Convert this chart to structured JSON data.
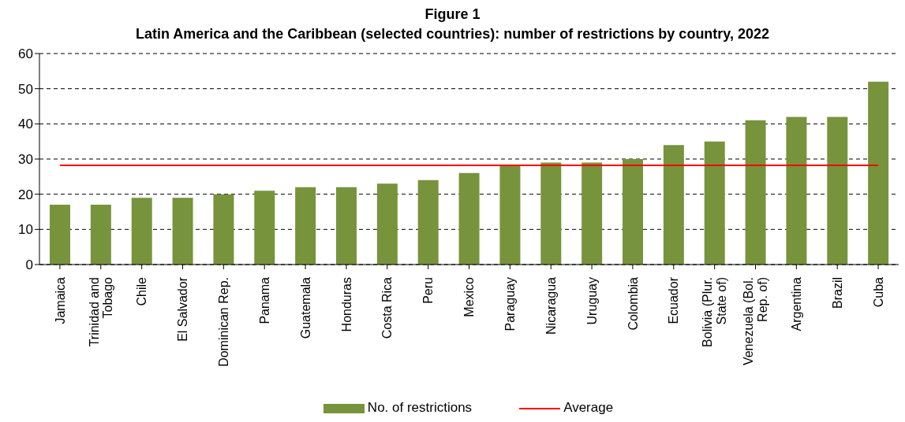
{
  "chart_data": {
    "type": "bar",
    "title": "Figure 1",
    "subtitle": "Latin America and the Caribbean (selected countries): number of restrictions by country, 2022",
    "categories": [
      "Jamaica",
      "Trinidad and Tobago",
      "Chile",
      "El Salvador",
      "Dominican Rep.",
      "Panama",
      "Guatemala",
      "Honduras",
      "Costa Rica",
      "Peru",
      "Mexico",
      "Paraguay",
      "Nicaragua",
      "Uruguay",
      "Colombia",
      "Ecuador",
      "Bolivia (Plur. State of)",
      "Venezuela (Bol. Rep. of)",
      "Argentina",
      "Brazil",
      "Cuba"
    ],
    "series": [
      {
        "name": "No. of restrictions",
        "color": "#77933c",
        "values": [
          17,
          17,
          19,
          19,
          20,
          21,
          22,
          22,
          23,
          24,
          26,
          28,
          29,
          29,
          30,
          34,
          35,
          41,
          42,
          42,
          52
        ]
      },
      {
        "name": "Average",
        "type": "line",
        "color": "#ff0000",
        "values": [
          28.2,
          28.2,
          28.2,
          28.2,
          28.2,
          28.2,
          28.2,
          28.2,
          28.2,
          28.2,
          28.2,
          28.2,
          28.2,
          28.2,
          28.2,
          28.2,
          28.2,
          28.2,
          28.2,
          28.2,
          28.2
        ]
      }
    ],
    "ylim": [
      0,
      60
    ],
    "yticks": [
      0,
      10,
      20,
      30,
      40,
      50,
      60
    ],
    "grid": "y",
    "legend": "bottom",
    "marker": "none"
  }
}
